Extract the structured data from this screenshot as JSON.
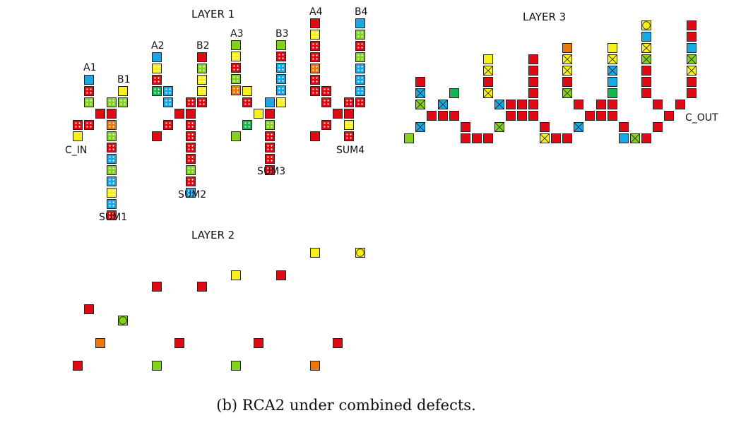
{
  "palette": {
    "red": "#e00a17",
    "yellow": "#f7f01c",
    "blue": "#17a8e6",
    "green": "#86d11e",
    "orange": "#e8770d",
    "dkgreen": "#15b552"
  },
  "layers": {
    "layer1": "LAYER 1",
    "layer2": "LAYER 2",
    "layer3": "LAYER 3"
  },
  "signals": {
    "a1": "A1",
    "b1": "B1",
    "a2": "A2",
    "b2": "B2",
    "a3": "A3",
    "b3": "B3",
    "a4": "A4",
    "b4": "B4",
    "c_in": "C_IN",
    "c_out": "C_OUT",
    "sum1": "SUM1",
    "sum2": "SUM2",
    "sum3": "SUM3",
    "sum4": "SUM4"
  },
  "caption": "(b) RCA2 under combined defects."
}
